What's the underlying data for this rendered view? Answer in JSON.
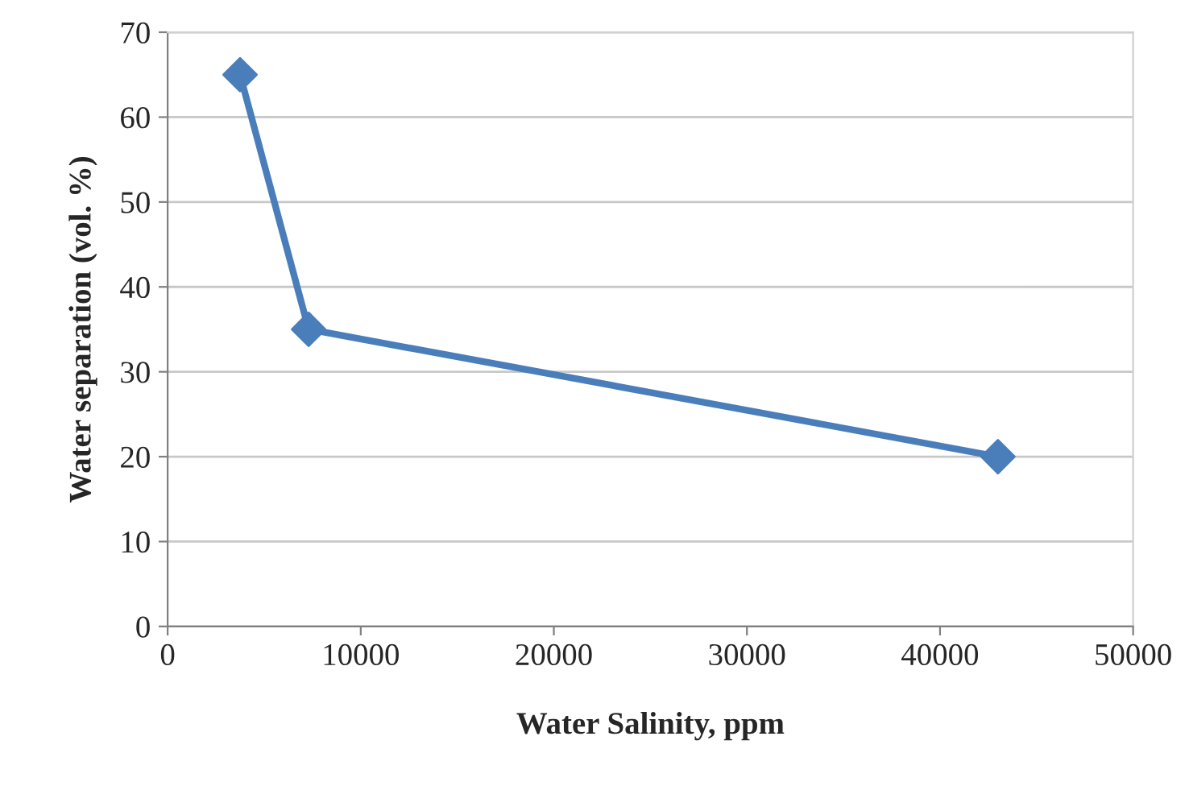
{
  "chart_data": {
    "type": "line",
    "xlabel": "Water Salinity, ppm",
    "ylabel": "Water separation (vol. %)",
    "series": [
      {
        "color": "#4a7ebb",
        "x": [
          3750,
          7300,
          43000
        ],
        "values": [
          65,
          35,
          20
        ]
      }
    ],
    "xlim": [
      0,
      50000
    ],
    "xticks": [
      0,
      10000,
      20000,
      30000,
      40000,
      50000
    ],
    "ylim": [
      0,
      70
    ],
    "yticks": [
      0,
      10,
      20,
      30,
      40,
      50,
      60,
      70
    ],
    "grid": "y",
    "marker": "diamond",
    "line_style": "solid",
    "legend": false
  }
}
